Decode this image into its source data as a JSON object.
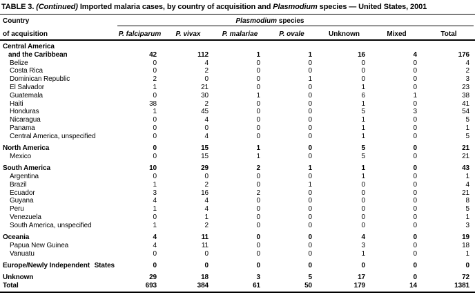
{
  "title": {
    "label": "TABLE 3.",
    "continued": "(Continued)",
    "segment_a": "Imported malaria cases, by country of acquisition and",
    "species_word": "Plasmodium",
    "segment_b": "species — United States, 2001"
  },
  "header": {
    "col1_line1": "Country",
    "col1_line2": "of acquisition",
    "spanner": {
      "italic": "Plasmodium",
      "rest": "species"
    },
    "columns": [
      {
        "key": "p-falciparum",
        "label": "P. falciparum",
        "italic": true
      },
      {
        "key": "p-vivax",
        "label": "P. vivax",
        "italic": true
      },
      {
        "key": "p-malariae",
        "label": "P. malariae",
        "italic": true
      },
      {
        "key": "p-ovale",
        "label": "P. ovale",
        "italic": true
      },
      {
        "key": "unknown",
        "label": "Unknown",
        "italic": false
      },
      {
        "key": "mixed",
        "label": "Mixed",
        "italic": false
      },
      {
        "key": "total",
        "label": "Total",
        "italic": false
      }
    ]
  },
  "rows": [
    {
      "label": "Central America",
      "indent": 0,
      "bold": true,
      "gap": false,
      "values": null
    },
    {
      "label": "and the Caribbean",
      "indent": 1,
      "bold": true,
      "gap": false,
      "values": [
        42,
        112,
        1,
        1,
        16,
        4,
        176
      ]
    },
    {
      "label": "Belize",
      "indent": 2,
      "bold": false,
      "gap": false,
      "values": [
        0,
        4,
        0,
        0,
        0,
        0,
        4
      ]
    },
    {
      "label": "Costa Rica",
      "indent": 2,
      "bold": false,
      "gap": false,
      "values": [
        0,
        2,
        0,
        0,
        0,
        0,
        2
      ]
    },
    {
      "label": "Dominican Republic",
      "indent": 2,
      "bold": false,
      "gap": false,
      "values": [
        2,
        0,
        0,
        1,
        0,
        0,
        3
      ]
    },
    {
      "label": "El Salvador",
      "indent": 2,
      "bold": false,
      "gap": false,
      "values": [
        1,
        21,
        0,
        0,
        1,
        0,
        23
      ]
    },
    {
      "label": "Guatemala",
      "indent": 2,
      "bold": false,
      "gap": false,
      "values": [
        0,
        30,
        1,
        0,
        6,
        1,
        38
      ]
    },
    {
      "label": "Haiti",
      "indent": 2,
      "bold": false,
      "gap": false,
      "values": [
        38,
        2,
        0,
        0,
        1,
        0,
        41
      ]
    },
    {
      "label": "Honduras",
      "indent": 2,
      "bold": false,
      "gap": false,
      "values": [
        1,
        45,
        0,
        0,
        5,
        3,
        54
      ]
    },
    {
      "label": "Nicaragua",
      "indent": 2,
      "bold": false,
      "gap": false,
      "values": [
        0,
        4,
        0,
        0,
        1,
        0,
        5
      ]
    },
    {
      "label": "Panama",
      "indent": 2,
      "bold": false,
      "gap": false,
      "values": [
        0,
        0,
        0,
        0,
        1,
        0,
        1
      ]
    },
    {
      "label": "Central America, unspecified",
      "indent": 2,
      "bold": false,
      "gap": false,
      "values": [
        0,
        4,
        0,
        0,
        1,
        0,
        5
      ]
    },
    {
      "label": "North America",
      "indent": 0,
      "bold": true,
      "gap": true,
      "values": [
        0,
        15,
        1,
        0,
        5,
        0,
        21
      ]
    },
    {
      "label": "Mexico",
      "indent": 2,
      "bold": false,
      "gap": false,
      "values": [
        0,
        15,
        1,
        0,
        5,
        0,
        21
      ]
    },
    {
      "label": "South America",
      "indent": 0,
      "bold": true,
      "gap": true,
      "values": [
        10,
        29,
        2,
        1,
        1,
        0,
        43
      ]
    },
    {
      "label": "Argentina",
      "indent": 2,
      "bold": false,
      "gap": false,
      "values": [
        0,
        0,
        0,
        0,
        1,
        0,
        1
      ]
    },
    {
      "label": "Brazil",
      "indent": 2,
      "bold": false,
      "gap": false,
      "values": [
        1,
        2,
        0,
        1,
        0,
        0,
        4
      ]
    },
    {
      "label": "Ecuador",
      "indent": 2,
      "bold": false,
      "gap": false,
      "values": [
        3,
        16,
        2,
        0,
        0,
        0,
        21
      ]
    },
    {
      "label": "Guyana",
      "indent": 2,
      "bold": false,
      "gap": false,
      "values": [
        4,
        4,
        0,
        0,
        0,
        0,
        8
      ]
    },
    {
      "label": "Peru",
      "indent": 2,
      "bold": false,
      "gap": false,
      "values": [
        1,
        4,
        0,
        0,
        0,
        0,
        5
      ]
    },
    {
      "label": "Venezuela",
      "indent": 2,
      "bold": false,
      "gap": false,
      "values": [
        0,
        1,
        0,
        0,
        0,
        0,
        1
      ]
    },
    {
      "label": "South America, unspecified",
      "indent": 2,
      "bold": false,
      "gap": false,
      "values": [
        1,
        2,
        0,
        0,
        0,
        0,
        3
      ]
    },
    {
      "label": "Oceania",
      "indent": 0,
      "bold": true,
      "gap": true,
      "values": [
        4,
        11,
        0,
        0,
        4,
        0,
        19
      ]
    },
    {
      "label": "Papua New Guinea",
      "indent": 2,
      "bold": false,
      "gap": false,
      "values": [
        4,
        11,
        0,
        0,
        3,
        0,
        18
      ]
    },
    {
      "label": "Vanuatu",
      "indent": 2,
      "bold": false,
      "gap": false,
      "values": [
        0,
        0,
        0,
        0,
        1,
        0,
        1
      ]
    },
    {
      "label": "Europe/Newly Independent",
      "label_tail": "States",
      "indent": 0,
      "bold": true,
      "gap": true,
      "values": [
        0,
        0,
        0,
        0,
        0,
        0,
        0
      ]
    },
    {
      "label": "Unknown",
      "indent": 0,
      "bold": true,
      "gap": true,
      "values": [
        29,
        18,
        3,
        5,
        17,
        0,
        72
      ]
    },
    {
      "label": "Total",
      "indent": 0,
      "bold": true,
      "gap": false,
      "values": [
        693,
        384,
        61,
        50,
        179,
        14,
        1381
      ]
    }
  ]
}
